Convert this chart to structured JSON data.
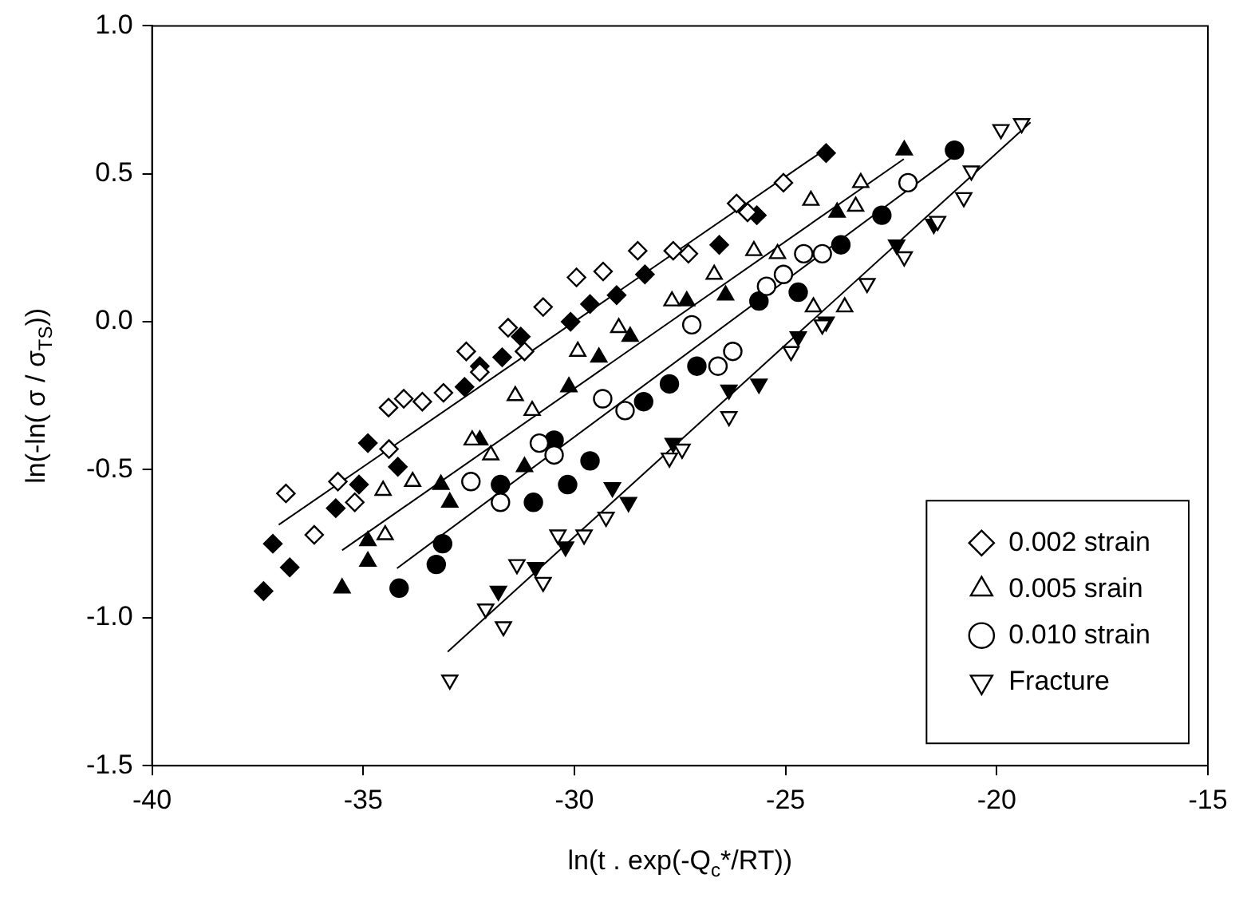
{
  "chart_data": {
    "type": "scatter",
    "xlabel": "ln(t . exp(-Q$_{c}$*/RT))",
    "ylabel": "ln(-ln( σ / σ$_{TS}$))",
    "xlim": [
      -40,
      -15
    ],
    "xticks": [
      -40,
      -35,
      -30,
      -25,
      -20,
      -15
    ],
    "ylim": [
      -1.5,
      1.0
    ],
    "yticks": [
      -1.5,
      {
        "value": -1.0,
        "label": "-1.0"
      },
      -0.5,
      {
        "value": 0,
        "label": "0.0"
      },
      0.5,
      {
        "value": 1.0,
        "label": "1.0"
      }
    ],
    "grid": false,
    "legend": "bottom right",
    "series": [
      {
        "name": "0.002 strain",
        "color": "#ffffff",
        "marker": "diamond",
        "x": [
          -36.83,
          -36.16,
          -35.6,
          -35.2,
          -34.4,
          -34.04,
          -34.39,
          -33.6,
          -33.1,
          -32.56,
          -32.24,
          -31.57,
          -31.18,
          -30.74,
          -29.95,
          -29.32,
          -28.5,
          -27.66,
          -27.3,
          -26.16,
          -25.05,
          -25.9
        ],
        "values": [
          -0.58,
          -0.72,
          -0.54,
          -0.61,
          -0.29,
          -0.26,
          -0.43,
          -0.27,
          -0.24,
          -0.1,
          -0.17,
          -0.02,
          -0.1,
          0.05,
          0.15,
          0.17,
          0.24,
          0.24,
          0.23,
          0.4,
          0.47,
          0.37
        ]
      },
      {
        "name": "0.005 srain",
        "color": "#ffffff",
        "marker": "triangle",
        "x": [
          -34.53,
          -34.48,
          -33.83,
          -32.42,
          -31.98,
          -31.4,
          -31.0,
          -29.92,
          -28.95,
          -27.69,
          -26.69,
          -25.75,
          -25.19,
          -24.4,
          -23.22,
          -23.34,
          -24.34,
          -23.6
        ],
        "values": [
          -0.57,
          -0.72,
          -0.54,
          -0.4,
          -0.45,
          -0.25,
          -0.3,
          -0.1,
          -0.02,
          0.07,
          0.16,
          0.24,
          0.23,
          0.41,
          0.47,
          0.39,
          0.05,
          0.05
        ]
      },
      {
        "name": "0.010 strain",
        "color": "#ffffff",
        "marker": "circle",
        "x": [
          -32.45,
          -31.75,
          -30.83,
          -30.48,
          -29.33,
          -28.8,
          -27.22,
          -26.6,
          -25.45,
          -25.05,
          -24.57,
          -24.13,
          -22.1,
          -26.25
        ],
        "values": [
          -0.54,
          -0.61,
          -0.41,
          -0.45,
          -0.26,
          -0.3,
          -0.01,
          -0.15,
          0.12,
          0.16,
          0.23,
          0.23,
          0.47,
          -0.1
        ]
      },
      {
        "name": "Fracture",
        "color": "#ffffff",
        "marker": "triangle_down",
        "x": [
          -32.95,
          -32.1,
          -31.68,
          -31.36,
          -30.74,
          -30.39,
          -29.77,
          -29.25,
          -27.75,
          -27.45,
          -26.34,
          -24.87,
          -24.13,
          -23.07,
          -22.19,
          -21.4,
          -20.78,
          -20.6,
          -19.9,
          -19.41
        ],
        "values": [
          -1.21,
          -0.97,
          -1.03,
          -0.82,
          -0.88,
          -0.72,
          -0.72,
          -0.66,
          -0.46,
          -0.43,
          -0.32,
          -0.1,
          -0.01,
          0.13,
          0.22,
          0.34,
          0.42,
          0.51,
          0.65,
          0.67
        ]
      },
      {
        "color": "#000000",
        "marker": "diamond",
        "x": [
          -37.36,
          -37.14,
          -36.74,
          -35.65,
          -35.1,
          -34.89,
          -34.18,
          -32.6,
          -32.24,
          -31.71,
          -31.27,
          -30.09,
          -29.63,
          -29.0,
          -28.33,
          -26.57,
          -25.68,
          -24.04
        ],
        "values": [
          -0.91,
          -0.75,
          -0.83,
          -0.63,
          -0.55,
          -0.41,
          -0.49,
          -0.22,
          -0.15,
          -0.12,
          -0.05,
          0.0,
          0.06,
          0.09,
          0.16,
          0.26,
          0.36,
          0.57
        ]
      },
      {
        "color": "#000000",
        "marker": "triangle",
        "x": [
          -35.5,
          -34.89,
          -34.89,
          -33.16,
          -32.95,
          -32.24,
          -31.18,
          -30.13,
          -29.42,
          -28.68,
          -27.34,
          -26.42,
          -23.78,
          -22.19
        ],
        "values": [
          -0.9,
          -0.81,
          -0.74,
          -0.55,
          -0.61,
          -0.4,
          -0.49,
          -0.22,
          -0.12,
          -0.05,
          0.07,
          0.09,
          0.37,
          0.58
        ]
      },
      {
        "color": "#000000",
        "marker": "circle",
        "x": [
          -34.15,
          -33.27,
          -33.12,
          -31.75,
          -30.97,
          -30.48,
          -30.16,
          -29.63,
          -28.36,
          -27.75,
          -27.1,
          -25.63,
          -24.7,
          -23.69,
          -22.72,
          -21.0
        ],
        "values": [
          -0.9,
          -0.82,
          -0.75,
          -0.55,
          -0.61,
          -0.4,
          -0.55,
          -0.47,
          -0.27,
          -0.21,
          -0.15,
          0.07,
          0.1,
          0.26,
          0.36,
          0.58
        ]
      },
      {
        "color": "#000000",
        "marker": "triangle_down",
        "x": [
          -31.8,
          -30.92,
          -30.21,
          -29.1,
          -28.72,
          -27.66,
          -26.34,
          -25.63,
          -24.7,
          -24.04,
          -22.37,
          -21.49
        ],
        "values": [
          -0.91,
          -0.83,
          -0.76,
          -0.56,
          -0.61,
          -0.41,
          -0.23,
          -0.21,
          -0.05,
          0.0,
          0.26,
          0.33
        ]
      },
      {
        "type": "line",
        "color": "#000000",
        "marker": "none",
        "x": [
          -37.0,
          -24.13
        ],
        "values": [
          -0.686,
          0.576
        ]
      },
      {
        "type": "line",
        "color": "#000000",
        "marker": "none",
        "x": [
          -35.5,
          -22.2
        ],
        "values": [
          -0.772,
          0.55
        ]
      },
      {
        "type": "line",
        "color": "#000000",
        "marker": "none",
        "x": [
          -34.2,
          -20.87
        ],
        "values": [
          -0.833,
          0.576
        ]
      },
      {
        "type": "line",
        "color": "#000000",
        "marker": "none",
        "x": [
          -33.0,
          -19.2
        ],
        "values": [
          -1.115,
          0.674
        ]
      }
    ]
  }
}
